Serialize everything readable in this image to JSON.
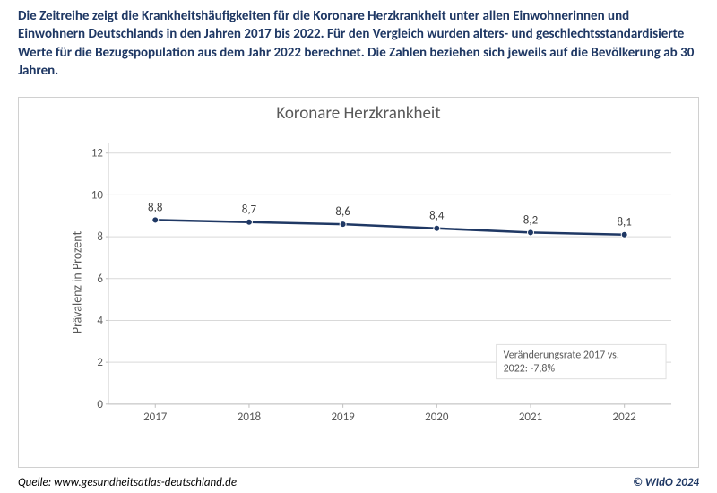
{
  "headline": "Die Zeitreihe zeigt die Krankheitshäufigkeiten für die Koronare Herzkrankheit unter allen Einwohnerinnen und Einwohnern Deutschlands in den Jahren 2017 bis 2022. Für den Vergleich wurden alters- und geschlechtsstandardisierte Werte für die Bezugspopulation aus dem Jahr 2022 berechnet. Die Zahlen beziehen sich jeweils auf die Bevölkerung ab 30 Jahren.",
  "chart": {
    "type": "line",
    "title": "Koronare Herzkrankheit",
    "title_fontsize": 19,
    "title_color": "#595959",
    "ylabel": "Prävalenz in Prozent",
    "ylabel_fontsize": 14,
    "ylabel_color": "#595959",
    "categories": [
      "2017",
      "2018",
      "2019",
      "2020",
      "2021",
      "2022"
    ],
    "values": [
      8.8,
      8.7,
      8.6,
      8.4,
      8.2,
      8.1
    ],
    "value_labels": [
      "8,8",
      "8,7",
      "8,6",
      "8,4",
      "8,2",
      "8,1"
    ],
    "line_color": "#1f3864",
    "line_width": 2.5,
    "marker_style": "circle",
    "marker_size": 7,
    "marker_fill": "#1f3864",
    "marker_stroke": "#ffffff",
    "ylim": [
      0,
      12.5
    ],
    "yticks": [
      0,
      2,
      4,
      6,
      8,
      10,
      12
    ],
    "grid_color": "#d9d9d9",
    "grid_width": 1,
    "axis_color": "#bfbfbf",
    "tick_label_fontsize": 13,
    "tick_label_color": "#595959",
    "data_label_fontsize": 13,
    "data_label_color": "#404040",
    "background_color": "#ffffff",
    "note": "Veränderungsrate 2017 vs. 2022: -7,8%",
    "note_border": "#e0e0e0",
    "note_bg": "#ffffff",
    "note_fontsize": 12,
    "note_color": "#595959"
  },
  "source_label": "Quelle: www.gesundheitsatlas-deutschland.de",
  "copyright": "© WIdO 2024"
}
